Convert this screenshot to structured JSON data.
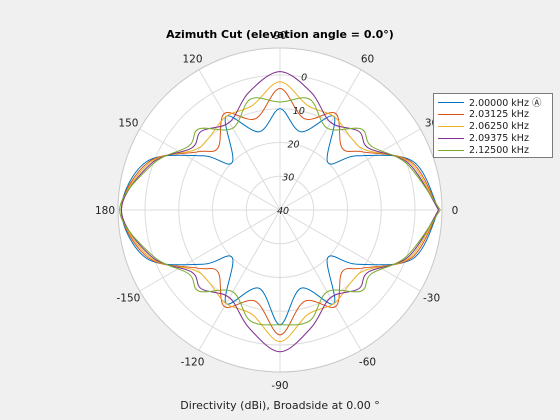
{
  "chart_data": {
    "type": "polar-line",
    "title": "Azimuth Cut (elevation angle = 0.0°)",
    "xlabel": "Directivity (dBi), Broadside at 0.00 °",
    "angle_ticks": [
      "90",
      "60",
      "30",
      "0",
      "-30",
      "-60",
      "-90",
      "-120",
      "-150",
      "180",
      "150",
      "120"
    ],
    "angle_tick_degrees": [
      90,
      60,
      30,
      0,
      -30,
      -60,
      -90,
      -120,
      -150,
      180,
      150,
      120
    ],
    "radial_ticks": [
      "0",
      "10",
      "20",
      "30",
      "40"
    ],
    "radial_tick_values": [
      0,
      -10,
      -20,
      -30,
      -40
    ],
    "r_range_dBi": [
      -40,
      8
    ],
    "grid": true,
    "legend_placement": "right",
    "series": [
      {
        "name": "2.00000 kHz Ⓐ",
        "color": "#0072bd",
        "points": [
          [
            0,
            7
          ],
          [
            20,
            2
          ],
          [
            35,
            -12
          ],
          [
            45,
            -20
          ],
          [
            60,
            -8
          ],
          [
            75,
            -16
          ],
          [
            90,
            -10
          ],
          [
            105,
            -16
          ],
          [
            120,
            -8
          ],
          [
            135,
            -20
          ],
          [
            145,
            -12
          ],
          [
            160,
            2
          ],
          [
            180,
            7
          ],
          [
            200,
            2
          ],
          [
            215,
            -12
          ],
          [
            225,
            -20
          ],
          [
            240,
            -8
          ],
          [
            255,
            -16
          ],
          [
            270,
            -6
          ],
          [
            285,
            -16
          ],
          [
            300,
            -8
          ],
          [
            315,
            -20
          ],
          [
            325,
            -12
          ],
          [
            340,
            2
          ],
          [
            360,
            7
          ]
        ]
      },
      {
        "name": "2.03125 kHz",
        "color": "#d95319",
        "points": [
          [
            0,
            7
          ],
          [
            20,
            1.5
          ],
          [
            35,
            -10
          ],
          [
            45,
            -14
          ],
          [
            60,
            -7
          ],
          [
            75,
            -12
          ],
          [
            90,
            -4
          ],
          [
            105,
            -12
          ],
          [
            120,
            -7
          ],
          [
            135,
            -14
          ],
          [
            145,
            -10
          ],
          [
            160,
            1.5
          ],
          [
            180,
            7
          ],
          [
            200,
            1.5
          ],
          [
            215,
            -10
          ],
          [
            225,
            -14
          ],
          [
            240,
            -7
          ],
          [
            255,
            -12
          ],
          [
            270,
            -3
          ],
          [
            285,
            -12
          ],
          [
            300,
            -7
          ],
          [
            315,
            -14
          ],
          [
            325,
            -10
          ],
          [
            340,
            1.5
          ],
          [
            360,
            7
          ]
        ]
      },
      {
        "name": "2.06250 kHz",
        "color": "#edb120",
        "points": [
          [
            0,
            7
          ],
          [
            20,
            1
          ],
          [
            35,
            -9
          ],
          [
            45,
            -10
          ],
          [
            60,
            -8
          ],
          [
            75,
            -8
          ],
          [
            90,
            -2
          ],
          [
            105,
            -8
          ],
          [
            120,
            -8
          ],
          [
            135,
            -10
          ],
          [
            145,
            -9
          ],
          [
            160,
            1
          ],
          [
            180,
            7
          ],
          [
            200,
            1
          ],
          [
            215,
            -9
          ],
          [
            225,
            -10
          ],
          [
            240,
            -8
          ],
          [
            255,
            -8
          ],
          [
            270,
            -1
          ],
          [
            285,
            -8
          ],
          [
            300,
            -8
          ],
          [
            315,
            -10
          ],
          [
            325,
            -9
          ],
          [
            340,
            1
          ],
          [
            360,
            7
          ]
        ]
      },
      {
        "name": "2.09375 kHz",
        "color": "#7e2f8e",
        "points": [
          [
            0,
            7
          ],
          [
            20,
            0.5
          ],
          [
            35,
            -8
          ],
          [
            45,
            -7
          ],
          [
            60,
            -10
          ],
          [
            75,
            -4
          ],
          [
            90,
            1
          ],
          [
            105,
            -4
          ],
          [
            120,
            -10
          ],
          [
            135,
            -7
          ],
          [
            145,
            -8
          ],
          [
            160,
            0.5
          ],
          [
            180,
            7
          ],
          [
            200,
            0.5
          ],
          [
            215,
            -8
          ],
          [
            225,
            -7
          ],
          [
            240,
            -10
          ],
          [
            255,
            -4
          ],
          [
            270,
            2
          ],
          [
            285,
            -4
          ],
          [
            300,
            -10
          ],
          [
            315,
            -7
          ],
          [
            325,
            -8
          ],
          [
            340,
            0.5
          ],
          [
            360,
            7
          ]
        ]
      },
      {
        "name": "2.12500 kHz",
        "color": "#77ac30",
        "points": [
          [
            0,
            7.5
          ],
          [
            20,
            0
          ],
          [
            35,
            -7
          ],
          [
            45,
            -6
          ],
          [
            60,
            -12
          ],
          [
            75,
            -6
          ],
          [
            90,
            -8
          ],
          [
            105,
            -6
          ],
          [
            120,
            -12
          ],
          [
            135,
            -6
          ],
          [
            145,
            -7
          ],
          [
            160,
            0
          ],
          [
            180,
            7.5
          ],
          [
            200,
            0
          ],
          [
            215,
            -7
          ],
          [
            225,
            -6
          ],
          [
            240,
            -12
          ],
          [
            255,
            -6
          ],
          [
            270,
            -6
          ],
          [
            285,
            -6
          ],
          [
            300,
            -12
          ],
          [
            315,
            -6
          ],
          [
            325,
            -7
          ],
          [
            340,
            0
          ],
          [
            360,
            7.5
          ]
        ]
      }
    ]
  }
}
